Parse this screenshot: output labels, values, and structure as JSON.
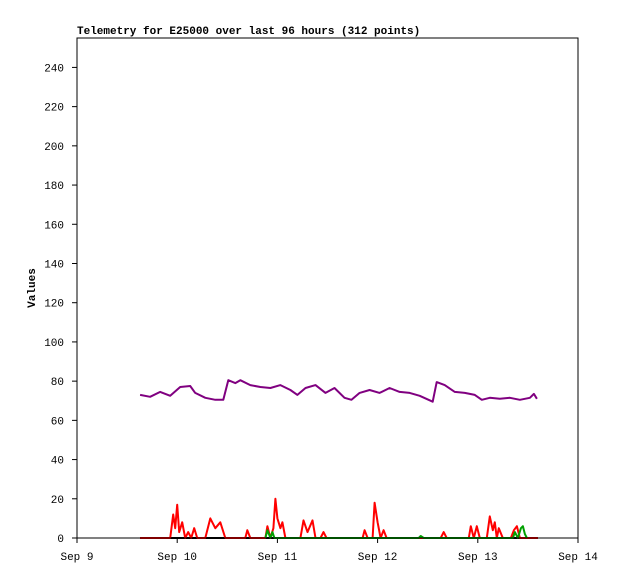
{
  "chart_data": {
    "type": "line",
    "title": "Telemetry for E25000 over last 96 hours (312 points)",
    "y_label": "Values",
    "xlim": [
      9,
      14
    ],
    "xticks": [
      {
        "value": 9,
        "label": "Sep 9"
      },
      {
        "value": 10,
        "label": "Sep 10"
      },
      {
        "value": 11,
        "label": "Sep 11"
      },
      {
        "value": 12,
        "label": "Sep 12"
      },
      {
        "value": 13,
        "label": "Sep 13"
      },
      {
        "value": 14,
        "label": "Sep 14"
      }
    ],
    "ylim": [
      0,
      255
    ],
    "yticks": [
      0,
      20,
      40,
      60,
      80,
      100,
      120,
      140,
      160,
      180,
      200,
      220,
      240
    ],
    "series": [
      {
        "color": "#000000",
        "x": [
          9.63,
          13.6
        ],
        "values": [
          0,
          0
        ]
      },
      {
        "color": "#ff0000",
        "x": [
          9.63,
          9.93,
          9.96,
          9.98,
          10.0,
          10.02,
          10.05,
          10.08,
          10.11,
          10.14,
          10.17,
          10.2,
          10.28,
          10.33,
          10.38,
          10.43,
          10.48,
          10.68,
          10.7,
          10.73,
          10.88,
          10.9,
          10.93,
          10.96,
          10.98,
          11.0,
          11.03,
          11.05,
          11.08,
          11.23,
          11.26,
          11.3,
          11.35,
          11.38,
          11.43,
          11.46,
          11.49,
          11.85,
          11.87,
          11.9,
          11.95,
          11.97,
          12.0,
          12.03,
          12.06,
          12.09,
          12.63,
          12.66,
          12.69,
          12.91,
          12.93,
          12.96,
          12.99,
          13.02,
          13.09,
          13.12,
          13.15,
          13.17,
          13.19,
          13.21,
          13.25,
          13.33,
          13.36,
          13.39,
          13.42,
          13.6
        ],
        "values": [
          0,
          0,
          12,
          5,
          17,
          3,
          8,
          0,
          3,
          0,
          5,
          0,
          0,
          10,
          5,
          8,
          0,
          0,
          4,
          0,
          0,
          6,
          0,
          5,
          20,
          10,
          5,
          8,
          0,
          0,
          9,
          3,
          9,
          0,
          0,
          3,
          0,
          0,
          4,
          0,
          0,
          18,
          8,
          0,
          4,
          0,
          0,
          3,
          0,
          0,
          6,
          0,
          6,
          0,
          0,
          11,
          4,
          8,
          0,
          5,
          0,
          0,
          4,
          6,
          0,
          0
        ]
      },
      {
        "color": "#00a000",
        "x": [
          10.88,
          10.9,
          10.93,
          10.95,
          10.97,
          12.41,
          12.43,
          12.46,
          13.35,
          13.37,
          13.4,
          13.43,
          13.45,
          13.47,
          13.49
        ],
        "values": [
          0,
          4,
          0,
          3,
          0,
          0,
          1,
          0,
          0,
          3,
          0,
          5,
          6,
          2,
          0
        ]
      },
      {
        "color": "#800080",
        "x": [
          9.63,
          9.73,
          9.83,
          9.93,
          10.03,
          10.13,
          10.18,
          10.28,
          10.38,
          10.46,
          10.51,
          10.58,
          10.63,
          10.73,
          10.83,
          10.93,
          11.03,
          11.13,
          11.2,
          11.28,
          11.38,
          11.48,
          11.57,
          11.67,
          11.74,
          11.82,
          11.92,
          12.02,
          12.12,
          12.22,
          12.32,
          12.42,
          12.55,
          12.59,
          12.67,
          12.77,
          12.87,
          12.97,
          13.04,
          13.12,
          13.22,
          13.32,
          13.42,
          13.52,
          13.56,
          13.59
        ],
        "values": [
          73,
          72,
          74.5,
          72.5,
          77,
          77.5,
          74,
          71.5,
          70.5,
          70.5,
          80.5,
          79,
          80.5,
          78,
          77,
          76.5,
          78,
          75.5,
          73,
          76.5,
          78,
          74,
          76.5,
          71.5,
          70.5,
          74,
          75.5,
          74,
          76.5,
          74.5,
          74,
          72.5,
          69.5,
          79.5,
          78,
          74.5,
          74,
          73,
          70.5,
          71.5,
          71,
          71.5,
          70.5,
          71.5,
          73.5,
          71
        ]
      }
    ]
  }
}
